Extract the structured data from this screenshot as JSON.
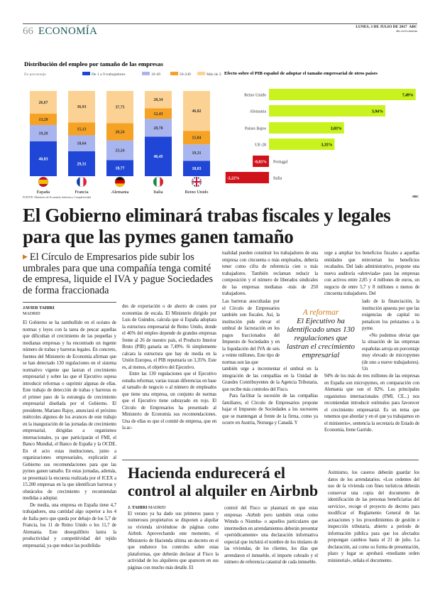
{
  "masthead": {
    "page_number": "66",
    "section": "ECONOMÍA",
    "date": "LUNES, 3 DE JULIO DE 2017",
    "brand": "ABC",
    "web": "abc.es/economia"
  },
  "chart_data": [
    {
      "type": "bar",
      "stacked": true,
      "title": "Distribución del empleo por tamaño de las empresas",
      "subtitle": "En porcentaje",
      "categories": [
        "España",
        "Francia",
        "Alemania",
        "Italia",
        "Reino Unido"
      ],
      "series": [
        {
          "name": "De 1 a 9 trabajadores",
          "color": "#1f46d6",
          "values": [
            40.83,
            29.31,
            18.77,
            46.45,
            18.03
          ],
          "labels": [
            "40,83",
            "29,31",
            "18,77",
            "46,45",
            "18,03"
          ]
        },
        {
          "name": "10-49",
          "color": "#a9b5ee",
          "values": [
            19.2,
            18.64,
            23.24,
            20.78,
            19.31
          ],
          "labels": [
            "19,20",
            "18,64",
            "23,24",
            "20,78",
            "19,31"
          ]
        },
        {
          "name": "50-249",
          "color": "#f6a224",
          "values": [
            13.29,
            15.13,
            20.24,
            12.43,
            15.84
          ],
          "labels": [
            "13,29",
            "15,13",
            "20,24",
            "12,43",
            "15,84"
          ]
        },
        {
          "name": "Más de 250",
          "color": "#fcd294",
          "values": [
            26.67,
            36.93,
            37.75,
            20.34,
            46.82
          ],
          "labels": [
            "26,67",
            "36,93",
            "37,75",
            "20,34",
            "46,82"
          ]
        }
      ],
      "flags": [
        "spain-flag",
        "france-flag",
        "germany-flag",
        "italy-flag",
        "uk-flag"
      ],
      "ylim": [
        0,
        100
      ],
      "source": "FUENTE: Ministerio de Economía, Industria y Competitividad"
    },
    {
      "type": "bar",
      "orientation": "horizontal",
      "title": "Efecto sobre el PIB español de adoptar el tamaño empresarial de otros países",
      "categories": [
        "Reino Unido",
        "Alemania",
        "Países Bajos",
        "UE-28",
        "Portugal",
        "Italia"
      ],
      "values": [
        7.49,
        5.94,
        3.83,
        3.35,
        -0.83,
        -2.22
      ],
      "labels": [
        "7,49%",
        "5,94%",
        "3,83%",
        "3,35%",
        "-0,83%",
        "-2,22%"
      ],
      "positive_color": "#c9f21f",
      "negative_color": "#d0121b",
      "credit": "ABC"
    }
  ],
  "article": {
    "headline": "El Gobierno eliminará trabas fiscales y legales para que las pymes ganen tamaño",
    "subhead": "El Círculo de Empresarios pide subir los umbrales para que una compañía tenga comité de empresa, liquide el IVA y pague Sociedades de forma fraccionada",
    "author": "JAVIER TAHIRI",
    "city": "MADRID",
    "col1": [
      "El Gobierno se ha zambullido en el océano de normas y leyes con la tarea de pescar aquellas que dificultan el crecimiento de las pequeñas y medianas empresas y ha encontrado un ingente número de trabas y barreras legales. En concreto, fuentes del Ministerio de Economía afirman que se han detectado 130 regulaciones en el sistema normativo vigente que lastran el crecimiento empresarial y sobre las que el Ejecutivo sopesa introducir reformas o suprimir algunas de ellas. Este trabajo de detección de trabas y barreras es el primer paso de la estrategia de crecimiento empresarial diseñada por el Gobierno. El presidente, Mariano Rajoy, anunciará el próximo miércoles algunos de los avances de este trabajo en la inauguración de las jornadas de crecimiento empresarial, dirigidas a organismos internacionales, ya que participarán el FMI, el Banco Mundial, el Banco de España y la OCDE. En el acto estas instituciones, junto a organizaciones empresariales, explicarán al Gobierno sus recomendaciones para que las pymes ganen tamaño. En estas jornadas, además, se presentará la encuesta realizada por el ICEX a 15.200 empresas en la que identifican barreras y obstáculos de crecimiento y recomiendan medidas a adoptar.",
      "De media, una empresa en España tiene 4,7 trabajadores, una cantidad algo superior a los 4 de Italia pero que queda por debajo de los 5,7 de Francia, los 11 de Reino Unido o los 11,7 de Alemania. Este desequilibrio lastra la productividad y competitividad del tejido empresarial, ya que reduce las posibilida-"
    ],
    "col2": [
      "des de exportación o de ahorro de costes por economías de escala. El Ministerio dirigido por Luis de Guindos, calcula que si España adoptara la estructura empresarial de Reino Unido, donde el 46% del empleo depende de grandes empresas frente al 26 de nuestro país, el Producto Interior Bruto (PIB) ganaría un 7,49%. Si simplemente calcara la estructura que hay de media en la Unión Europea, el PIB repuntaría un 3,35%. Este es, al menos, el objetivo del Ejecutivo.",
      "Entre las 130 regulaciones que el Ejecutivo estudia reformar, varias trazan diferencias en base al tamaño de negocio o al número de empleados que tiene una empresa, un conjunto de normas que el Ejecutivo tiene subrayado en rojo. El Círculo de Empresarios ha presentado al Ministerio de Economía sus recomendaciones. Una de ellas es que el comité de empresa, que en la ac-"
    ],
    "col3_top": "tualidad pueden constituir los trabajadores de una empresa con cincuenta o más empleados, debería tener como cifra de referencia cien o más trabajadores. También reclaman reducir la composición y el número de liberados sindicales de las empresas medianas -más de 250 trabajadores.",
    "col3_mid": "Las barreras auscultadas por el Círculo de Empresarios también son fiscales. Así, la institución pide elevar el umbral de facturación en los pagos fraccionados del Impuesto de Sociedades y en la liquidación del IVA de seis a veinte millones. Este tipo de normas son las que",
    "col3_bottom": [
      "también urge a incrementar el umbral en la integración de las compañías en la Unidad de Grandes Contribuyentes de la Agencia Tributaria, que recibe más controles del Fisco.",
      "Para facilitar la sucesión de las compañías familiares, el Círculo de Empresarios propone bajar el Impuesto de Sociedades a los sucesores que se mantengan al frente de la firma, como ya ocurre en Austria, Noruega y Canadá. Y"
    ],
    "col4_top": "urge a ampliar los beneficios fiscales a aquellas entidades que reinviertan los beneficios recabados. Del lado administrativo, propone una nueva auditoría «abreviada» para las empresas con activos entre 2,85 y 4 millones de euros, un negocio de entre 5,7 y 8 millones o menos de cincuenta trabajadores. Del",
    "col4_mid": [
      "lado de la financiación, la institución apuesta por que las exigencias de capital no penalicen los préstamos a la pyme.",
      "«No podemos obviar que la situación de las empresas españolas arroja un porcentaje muy elevado de micropymes (de uno a nueve trabajadores). Un"
    ],
    "col4_bottom": "94% de los más de tres millones de las empresas en España son micropymes, en comparación con Alemania que son el 82%. Los principales organismos internacionales (FMI, CE...) nos recomiendan introducir estímulos para favorecer el crecimiento empresarial. Es un tema que tenemos que abordar y en el que ya trabajamos en el ministerio», sentencia la secretaria de Estado de Economía, Irene Garrido.",
    "pull_quote": {
      "kicker": "A reformar",
      "text": "El Ejecutivo ha identificado unas 130 regulaciones que lastran el crecimiento empresarial"
    }
  },
  "article2": {
    "headline": "Hacienda endurecerá el control al alquiler en Airbnb",
    "author": "J. TAHIRI",
    "city": "MADRID",
    "col2": "El verano ya ha dado sus primeros pasos y numerosos propietarios se disponen a alquilar su vivienda sirviéndose de páginas como Airbnb. Aprovechando este momento, el Ministerio de Hacienda ultima un decreto en el que endurece los controles sobre estas plataformas, que deberán declarar al Fisco la actividad de los alquileres que aparecen en sus páginas con mucho más detalle. El",
    "col3": "control del Fisco se plasmará en que estas empresas -Airbnb pero también otras como Wimdu o Niumba- o aquellos particulares que intermedien en arrendamientos deberán presentar «periódicamente» una declaración informativa especial que incluirá el nombre de los titulares de las viviendas, de los clientes, los días que arrendaron el inmueble, el importe cobrado y el número de referencia catastral de cada inmueble.",
    "col4": "Asimismo, los caseros deberán guardar los datos de los arrendatarios. «Los cedentes del uso de la vivienda con fines turísticos deberán conservar una copia del documento de identificación de las personas beneficiarias del servicio», recoge el proyecto de decreto para modificar el Reglamento General de las actuaciones y los procedimientos de gestión e inspección tributaria, abierto a periodo de información pública para que los afectados propongan cambios hasta el 21 de julio. La declaración, así como su forma de presentación, plazo y lugar se aprobará «mediante orden ministerial», señala el documento."
  }
}
